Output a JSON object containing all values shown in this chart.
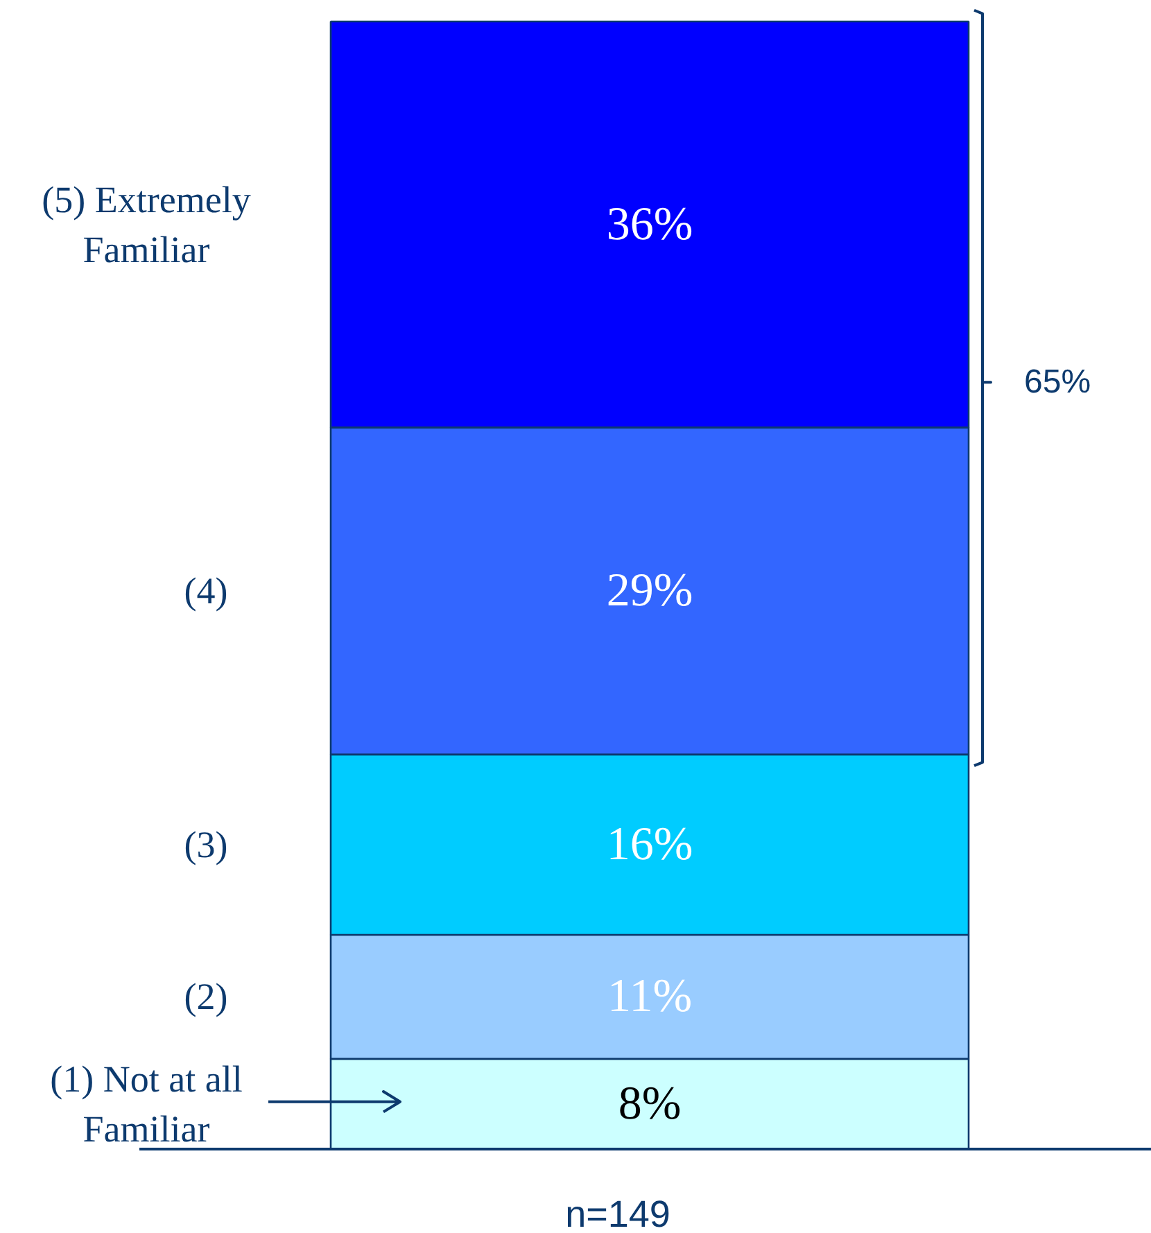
{
  "chart_data": {
    "type": "bar",
    "stacked": true,
    "categories": [
      null
    ],
    "xlabel": "n=149",
    "legend": "left",
    "grid": false,
    "series": [
      {
        "name": "(1) Not at all Familiar",
        "color": "#ccffff",
        "values": [
          8
        ],
        "value_labels": [
          "8%"
        ]
      },
      {
        "name": "(2)",
        "color": "#99ccff",
        "values": [
          11
        ],
        "value_labels": [
          "11%"
        ]
      },
      {
        "name": "(3)",
        "color": "#00ccff",
        "values": [
          16
        ],
        "value_labels": [
          "16%"
        ]
      },
      {
        "name": "(4)",
        "color": "#3366ff",
        "values": [
          29
        ],
        "value_labels": [
          "29%"
        ]
      },
      {
        "name": "(5) Extremely Familiar",
        "color": "#0000ff",
        "values": [
          36
        ],
        "value_labels": [
          "36%"
        ]
      }
    ],
    "annotations": [
      "65%"
    ]
  }
}
